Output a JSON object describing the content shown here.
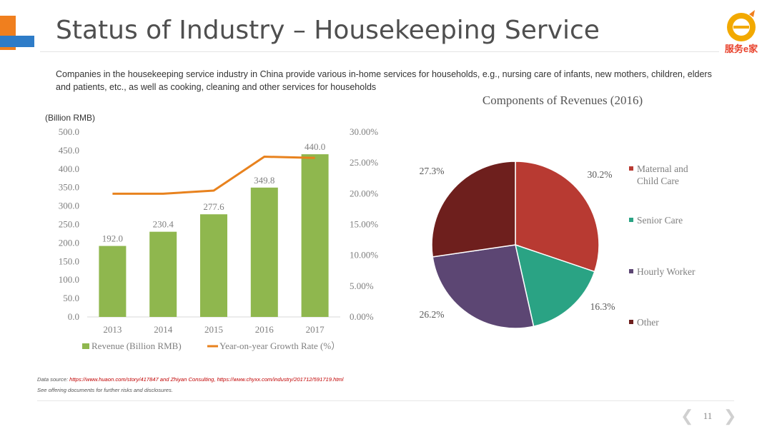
{
  "header": {
    "title": "Status of Industry – Housekeeping Service",
    "logo_text": "服务e家"
  },
  "intro_text": "Companies in the housekeeping service industry in China provide various in-home services for households, e.g., nursing care of infants, new mothers, children, elders and patients, etc., as well as cooking, cleaning and other services for households",
  "chart_data": [
    {
      "type": "bar",
      "title": "",
      "unit_label": "(Billion RMB)",
      "categories": [
        "2013",
        "2014",
        "2015",
        "2016",
        "2017"
      ],
      "series": [
        {
          "name": "Revenue (Billion RMB)",
          "type": "bar",
          "axis": "left",
          "values": [
            192.0,
            230.4,
            277.6,
            349.8,
            440.0
          ],
          "labels": [
            "192.0",
            "230.4",
            "277.6",
            "349.8",
            "440.0"
          ],
          "color": "#8fb74e"
        },
        {
          "name": "Year-on-year Growth Rate (%）",
          "type": "line",
          "axis": "right",
          "values": [
            0.2,
            0.2,
            0.205,
            0.26,
            0.258
          ],
          "color": "#e8821e"
        }
      ],
      "y_left": {
        "min": 0,
        "max": 500,
        "step": 50,
        "ticks": [
          "0.0",
          "50.0",
          "100.0",
          "150.0",
          "200.0",
          "250.0",
          "300.0",
          "350.0",
          "400.0",
          "450.0",
          "500.0"
        ]
      },
      "y_right": {
        "min": 0,
        "max": 0.3,
        "step": 0.05,
        "ticks": [
          "0.00%",
          "5.00%",
          "10.00%",
          "15.00%",
          "20.00%",
          "25.00%",
          "30.00%"
        ]
      },
      "grid": false,
      "legend_position": "bottom"
    },
    {
      "type": "pie",
      "title": "Components of Revenues (2016)",
      "slices": [
        {
          "name": "Maternal and Child Care",
          "value": 30.2,
          "label": "30.2%",
          "color": "#b83a32"
        },
        {
          "name": "Senior Care",
          "value": 16.3,
          "label": "16.3%",
          "color": "#2aa384"
        },
        {
          "name": "Hourly Worker",
          "value": 26.2,
          "label": "26.2%",
          "color": "#5c4673"
        },
        {
          "name": "Other",
          "value": 27.3,
          "label": "27.3%",
          "color": "#6e1f1d"
        }
      ],
      "legend": [
        {
          "lines": [
            "Maternal and",
            "Child Care"
          ]
        },
        {
          "lines": [
            "Senior Care"
          ]
        },
        {
          "lines": [
            "Hourly Worker"
          ]
        },
        {
          "lines": [
            "Other"
          ]
        }
      ],
      "legend_position": "right"
    }
  ],
  "footer": {
    "source_prefix": "Data source: ",
    "source_urls": "https://www.huaon.com/story/417847 and Zhiyan Consulting, https://www.chyxx.com/industry/201712/591719.html",
    "disclaimer": "See offering documents for further risks and disclosures.",
    "page_number": "11",
    "prev_glyph": "❮",
    "next_glyph": "❯"
  }
}
